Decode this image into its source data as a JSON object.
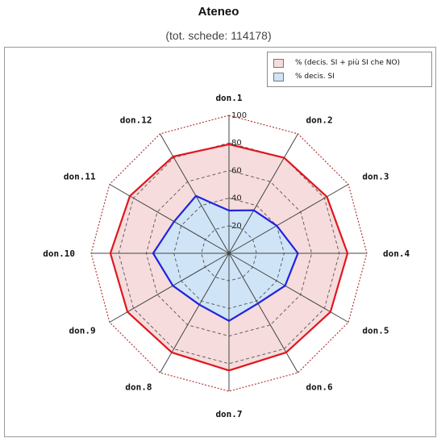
{
  "header": {
    "title": "Ateneo",
    "subtitle": "(tot. schede: 114178)"
  },
  "chart_data": {
    "type": "radar",
    "title": "Ateneo",
    "subtitle": "(tot. schede: 114178)",
    "categories": [
      "don.1",
      "don.2",
      "don.3",
      "don.4",
      "don.5",
      "don.6",
      "don.7",
      "don.8",
      "don.9",
      "don.10",
      "don.11",
      "don.12"
    ],
    "rlim": [
      0,
      100
    ],
    "radial_ticks": [
      20,
      40,
      60,
      80,
      100
    ],
    "series": [
      {
        "name": "% (decis. SI + più SI che NO)",
        "fill": "#f6dcdc",
        "stroke": "#e0161e",
        "values": [
          79,
          80,
          82,
          86,
          85,
          83,
          85,
          83,
          85,
          86,
          83,
          81
        ]
      },
      {
        "name": "% decis. SI",
        "fill": "#cfe4f6",
        "stroke": "#2222dd",
        "values": [
          31,
          36,
          40,
          50,
          47,
          42,
          49,
          43,
          47,
          55,
          46,
          48
        ]
      }
    ],
    "legend_position": "top-right",
    "grid": true
  }
}
